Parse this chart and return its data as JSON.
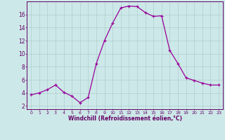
{
  "x": [
    0,
    1,
    2,
    3,
    4,
    5,
    6,
    7,
    8,
    9,
    10,
    11,
    12,
    13,
    14,
    15,
    16,
    17,
    18,
    19,
    20,
    21,
    22,
    23
  ],
  "y": [
    3.7,
    4.0,
    4.5,
    5.2,
    4.1,
    3.5,
    2.5,
    3.3,
    8.5,
    12.0,
    14.7,
    17.0,
    17.3,
    17.2,
    16.3,
    15.7,
    15.8,
    10.5,
    8.5,
    6.3,
    5.9,
    5.5,
    5.2,
    5.2
  ],
  "line_color": "#990099",
  "marker": "+",
  "marker_color": "#990099",
  "bg_color": "#cce8e8",
  "grid_color": "#aac8c8",
  "xlabel": "Windchill (Refroidissement éolien,°C)",
  "xlabel_color": "#660066",
  "tick_color": "#660066",
  "spine_color": "#660066",
  "ylim": [
    1.5,
    18.0
  ],
  "xlim": [
    -0.5,
    23.5
  ],
  "yticks": [
    2,
    4,
    6,
    8,
    10,
    12,
    14,
    16
  ],
  "xticks": [
    0,
    1,
    2,
    3,
    4,
    5,
    6,
    7,
    8,
    9,
    10,
    11,
    12,
    13,
    14,
    15,
    16,
    17,
    18,
    19,
    20,
    21,
    22,
    23
  ],
  "figsize": [
    3.2,
    2.0
  ],
  "dpi": 100
}
